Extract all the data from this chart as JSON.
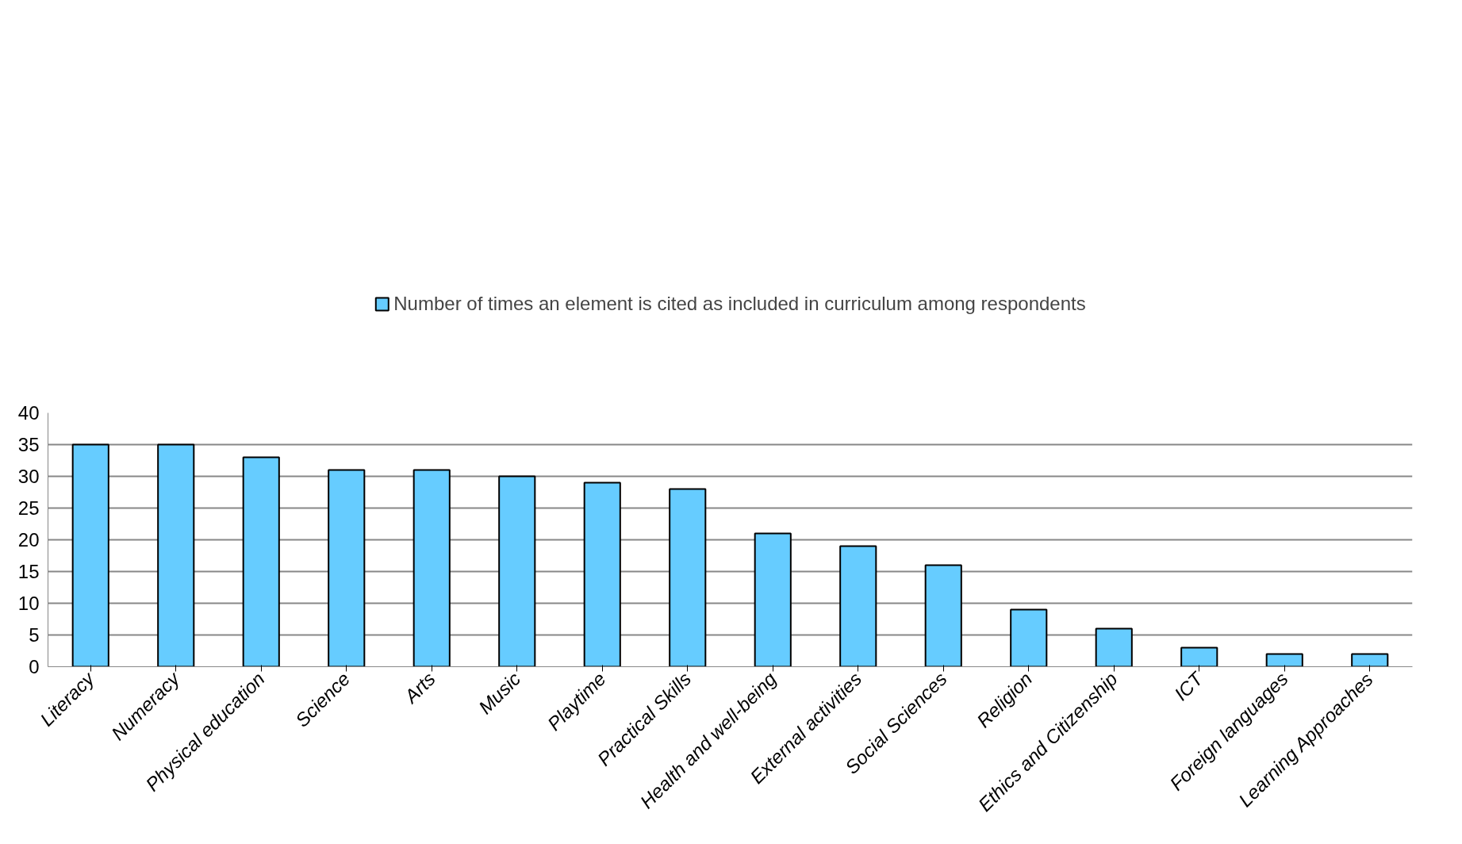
{
  "chart_data": {
    "type": "bar",
    "categories": [
      "Literacy",
      "Numeracy",
      "Physical education",
      "Science",
      "Arts",
      "Music",
      "Playtime",
      "Practical Skills",
      "Health and well-being",
      "External activities",
      "Social Sciences",
      "Religion",
      "Ethics and Citizenship",
      "ICT",
      "Foreign languages",
      "Learning Approaches"
    ],
    "series": [
      {
        "name": "Number of times an element is cited as included in curriculum among respondents",
        "color": "#66ccff",
        "values": [
          35,
          35,
          33,
          31,
          31,
          30,
          29,
          28,
          21,
          19,
          16,
          9,
          6,
          3,
          2,
          2
        ]
      }
    ],
    "ylim": [
      0,
      40
    ],
    "yticks": [
      0,
      5,
      10,
      15,
      20,
      25,
      30,
      35,
      40
    ],
    "grid": "y",
    "legend": "top"
  }
}
